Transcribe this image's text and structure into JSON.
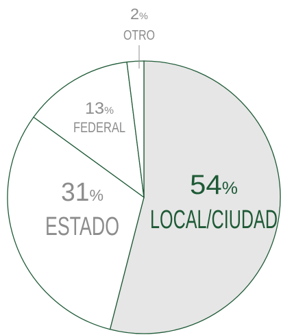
{
  "chart_data": {
    "type": "pie",
    "categories": [
      "LOCAL/CIUDAD",
      "ESTADO",
      "FEDERAL",
      "OTRO"
    ],
    "values": [
      54,
      31,
      13,
      2
    ],
    "value_labels": [
      "54%",
      "31%",
      "13%",
      "2%"
    ],
    "colors": [
      "#e6e6e6",
      "#ffffff",
      "#ffffff",
      "#ffffff"
    ],
    "edge_color": "#1e5a36",
    "label_colors": [
      "#1e5a36",
      "#8c8c8c",
      "#8c8c8c",
      "#8c8c8c"
    ]
  }
}
